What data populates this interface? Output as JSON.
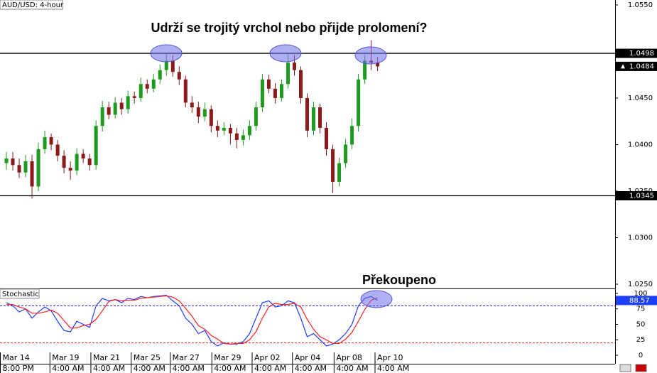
{
  "chart_data": [
    {
      "type": "candlestick",
      "title": "AUD/USD: 4-hour",
      "annotation": "Udrží se trojitý vrchol nebo přijde prolomení?",
      "up_color": "#1e9b1e",
      "down_color": "#8b1a1a",
      "xlim": [
        -1,
        95
      ],
      "ylim": [
        1.02454,
        1.05553
      ],
      "yticks": [
        {
          "value": 1.055,
          "label": "1.0550"
        },
        {
          "value": 1.045,
          "label": "1.0450"
        },
        {
          "value": 1.04,
          "label": "1.0400"
        },
        {
          "value": 1.035,
          "label": "1.0350"
        },
        {
          "value": 1.03,
          "label": "1.0300"
        },
        {
          "value": 1.025,
          "label": "1.0250"
        }
      ],
      "levels": [
        1.0498,
        1.0345
      ],
      "open": [
        1.038,
        1.0385,
        1.0378,
        1.037,
        1.0382,
        1.0355,
        1.0395,
        1.0408,
        1.04,
        1.0388,
        1.0375,
        1.0372,
        1.039,
        1.0385,
        1.0378,
        1.042,
        1.044,
        1.0432,
        1.0445,
        1.0438,
        1.0452,
        1.045,
        1.0465,
        1.046,
        1.047,
        1.048,
        1.049,
        1.0478,
        1.047,
        1.0445,
        1.044,
        1.043,
        1.0438,
        1.042,
        1.0415,
        1.0418,
        1.0412,
        1.0405,
        1.041,
        1.042,
        1.044,
        1.047,
        1.046,
        1.045,
        1.0465,
        1.0488,
        1.048,
        1.045,
        1.0415,
        1.044,
        1.0418,
        1.0395,
        1.036,
        1.038,
        1.04,
        1.042,
        1.047,
        1.049,
        1.0488
      ],
      "high": [
        1.0392,
        1.0392,
        1.0385,
        1.0389,
        1.0389,
        1.0402,
        1.0415,
        1.0412,
        1.0405,
        1.0394,
        1.0382,
        1.0396,
        1.0395,
        1.039,
        1.0426,
        1.0447,
        1.0446,
        1.0451,
        1.045,
        1.0458,
        1.0457,
        1.0472,
        1.047,
        1.0476,
        1.0486,
        1.0498,
        1.0496,
        1.0484,
        1.0474,
        1.0452,
        1.0446,
        1.0445,
        1.0442,
        1.0426,
        1.0424,
        1.0422,
        1.0418,
        1.0416,
        1.0426,
        1.0446,
        1.0476,
        1.0475,
        1.0466,
        1.047,
        1.0497,
        1.0496,
        1.0484,
        1.0455,
        1.0446,
        1.0444,
        1.0424,
        1.04,
        1.0386,
        1.0406,
        1.0428,
        1.0476,
        1.0496,
        1.0512,
        1.0494
      ],
      "low": [
        1.0373,
        1.0372,
        1.0364,
        1.0365,
        1.0342,
        1.035,
        1.039,
        1.0394,
        1.0382,
        1.0369,
        1.0362,
        1.0367,
        1.038,
        1.0372,
        1.0373,
        1.0414,
        1.0427,
        1.0428,
        1.0432,
        1.0433,
        1.0444,
        1.0446,
        1.0455,
        1.0456,
        1.0465,
        1.0474,
        1.0473,
        1.0464,
        1.044,
        1.0434,
        1.0423,
        1.0425,
        1.0413,
        1.0408,
        1.041,
        1.04,
        1.0396,
        1.0399,
        1.0405,
        1.0415,
        1.0435,
        1.0455,
        1.0444,
        1.0446,
        1.046,
        1.0474,
        1.0444,
        1.0408,
        1.041,
        1.0412,
        1.0388,
        1.0348,
        1.0355,
        1.0375,
        1.0395,
        1.0414,
        1.0465,
        1.048,
        1.0479
      ],
      "close": [
        1.0385,
        1.0378,
        1.037,
        1.0382,
        1.0355,
        1.0395,
        1.0408,
        1.04,
        1.0388,
        1.0375,
        1.0372,
        1.039,
        1.0385,
        1.0378,
        1.042,
        1.044,
        1.0432,
        1.0445,
        1.0438,
        1.0452,
        1.045,
        1.0465,
        1.046,
        1.047,
        1.048,
        1.049,
        1.0478,
        1.047,
        1.0445,
        1.044,
        1.043,
        1.0438,
        1.042,
        1.0415,
        1.0418,
        1.0412,
        1.0405,
        1.041,
        1.042,
        1.044,
        1.047,
        1.046,
        1.045,
        1.0465,
        1.0488,
        1.048,
        1.045,
        1.0415,
        1.044,
        1.0418,
        1.0395,
        1.036,
        1.038,
        1.04,
        1.042,
        1.047,
        1.049,
        1.0488,
        1.0484
      ]
    },
    {
      "type": "line",
      "title": "Stochastic",
      "annotation": "Překoupeno",
      "xlim": [
        -1,
        95
      ],
      "ylim": [
        -11.5,
        108
      ],
      "yticks": [
        100,
        75,
        50,
        25,
        0
      ],
      "levels": [
        {
          "value": 80,
          "color": "#2222cc"
        },
        {
          "value": 20,
          "color": "#cc2222"
        }
      ],
      "xticks": [
        {
          "value": -1,
          "label": "Mar 14",
          "sublabel": "8:00 PM"
        },
        {
          "value": 6.8,
          "label": "Mar 19",
          "sublabel": "4:00 AM"
        },
        {
          "value": 13.2,
          "label": "Mar 21",
          "sublabel": "4:00 AM"
        },
        {
          "value": 19.5,
          "label": "Mar 25",
          "sublabel": "4:00 AM"
        },
        {
          "value": 25.6,
          "label": "Mar 27",
          "sublabel": "4:00 AM"
        },
        {
          "value": 32.1,
          "label": "Mar 29",
          "sublabel": "4:00 AM"
        },
        {
          "value": 38.4,
          "label": "Apr 02",
          "sublabel": "4:00 AM"
        },
        {
          "value": 44.7,
          "label": "Apr 04",
          "sublabel": "4:00 AM"
        },
        {
          "value": 51.2,
          "label": "Apr 08",
          "sublabel": "4:00 AM"
        },
        {
          "value": 57.6,
          "label": "Apr 10",
          "sublabel": "4:00 AM"
        }
      ],
      "series": [
        {
          "color": "#1f3fff",
          "values": [
            85,
            80,
            70,
            75,
            60,
            70,
            78,
            72,
            55,
            40,
            38,
            55,
            50,
            45,
            80,
            92,
            88,
            90,
            85,
            92,
            90,
            95,
            93,
            95,
            96,
            97,
            88,
            80,
            60,
            50,
            35,
            40,
            22,
            15,
            20,
            18,
            18,
            22,
            35,
            60,
            85,
            88,
            78,
            80,
            88,
            85,
            60,
            30,
            35,
            25,
            15,
            18,
            25,
            35,
            50,
            80,
            92,
            95,
            88.57
          ]
        },
        {
          "color": "#ff1f1f",
          "values": [
            82,
            82,
            78,
            75,
            68,
            68,
            70,
            73,
            68,
            56,
            44,
            44,
            48,
            50,
            58,
            72,
            87,
            90,
            88,
            89,
            89,
            92,
            93,
            94,
            95,
            96,
            94,
            88,
            76,
            63,
            48,
            42,
            32,
            26,
            19,
            18,
            19,
            19,
            25,
            38,
            60,
            78,
            84,
            82,
            82,
            84,
            78,
            58,
            42,
            30,
            25,
            19,
            19,
            26,
            37,
            55,
            74,
            89,
            93
          ]
        }
      ]
    }
  ]
}
